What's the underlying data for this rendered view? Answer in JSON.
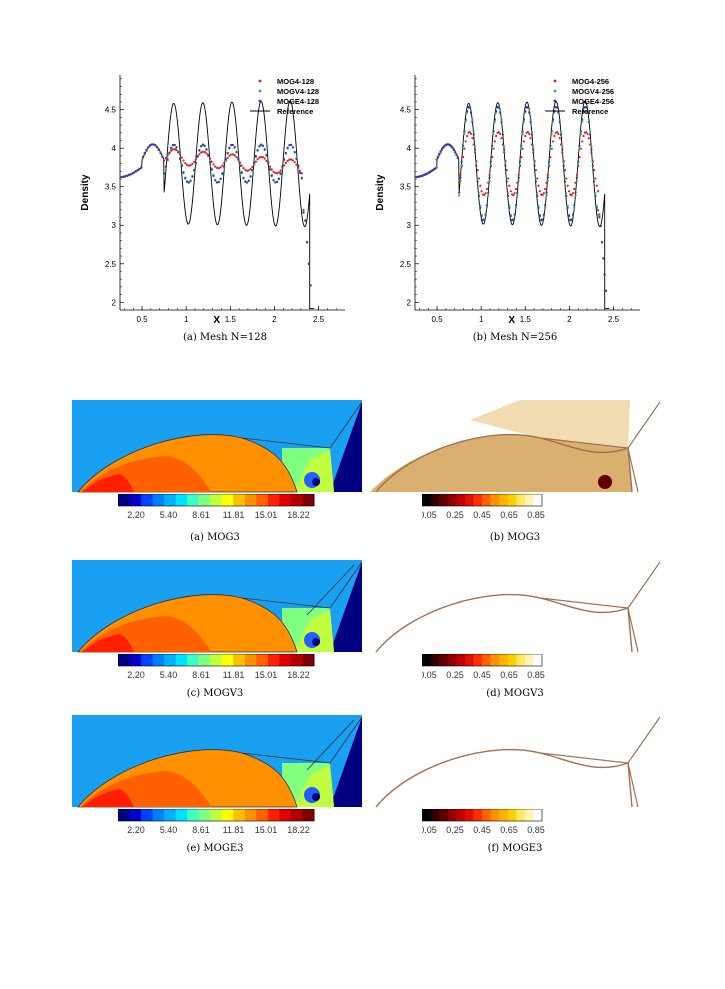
{
  "chart_data": [
    {
      "type": "line",
      "ylabel": "Density",
      "xlabel": "X",
      "xlim": [
        0.25,
        2.8
      ],
      "ylim": [
        1.9,
        4.95
      ],
      "x_ticks": [
        "0.5",
        "1",
        "1.5",
        "2",
        "2.5"
      ],
      "y_ticks": [
        "2",
        "2.5",
        "3",
        "3.5",
        "4",
        "4.5"
      ],
      "legend": [
        "MOG4-128",
        "MOGV4-128",
        "MOGE4-128",
        "Reference"
      ],
      "legend_position": "top-right",
      "series": [
        {
          "name": "MOG4-128",
          "marker": "dot",
          "color": "#e41a1c",
          "style": "smeared",
          "amp": 0.12
        },
        {
          "name": "MOGV4-128",
          "marker": "dot",
          "color": "#22bb33",
          "style": "partial",
          "amp": 0.3
        },
        {
          "name": "MOGE4-128",
          "marker": "dot",
          "color": "#3333cc",
          "style": "partial",
          "amp": 0.3
        },
        {
          "name": "Reference",
          "marker": "line",
          "color": "#000000"
        }
      ],
      "caption": "(a) Mesh N=128"
    },
    {
      "type": "line",
      "ylabel": "Density",
      "xlabel": "X",
      "xlim": [
        0.25,
        2.8
      ],
      "ylim": [
        1.9,
        4.95
      ],
      "x_ticks": [
        "0.5",
        "1",
        "1.5",
        "2",
        "2.5"
      ],
      "y_ticks": [
        "2",
        "2.5",
        "3",
        "3.5",
        "4",
        "4.5"
      ],
      "legend": [
        "MOG4-256",
        "MOGV4-256",
        "MOGE4-256",
        "Reference"
      ],
      "legend_position": "top-right",
      "series": [
        {
          "name": "MOG4-256",
          "marker": "dot",
          "color": "#e41a1c",
          "style": "partial",
          "amp": 0.5
        },
        {
          "name": "MOGV4-256",
          "marker": "dot",
          "color": "#22bb33",
          "style": "resolved",
          "amp": 0.9
        },
        {
          "name": "MOGE4-256",
          "marker": "dot",
          "color": "#3333cc",
          "style": "resolved",
          "amp": 0.9
        },
        {
          "name": "Reference",
          "marker": "line",
          "color": "#000000"
        }
      ],
      "caption": "(b) Mesh N=256"
    }
  ],
  "contours": {
    "density_ticks": [
      "2.20",
      "5.40",
      "8.61",
      "11.81",
      "15.01",
      "18.22"
    ],
    "indicator_ticks": [
      "0.05",
      "0.25",
      "0.45",
      "0.65",
      "0.85"
    ],
    "density_colors": [
      "#000080",
      "#0000c8",
      "#0040ff",
      "#0080ff",
      "#00b0ff",
      "#00e0ff",
      "#40ffc0",
      "#80ff80",
      "#c0ff40",
      "#ffff00",
      "#ffc000",
      "#ff9000",
      "#ff6000",
      "#ff2000",
      "#e00000",
      "#b00000",
      "#800000"
    ],
    "indicator_colors": [
      "#000000",
      "#300000",
      "#600000",
      "#900000",
      "#c00000",
      "#e01000",
      "#ff3000",
      "#ff6000",
      "#ff9000",
      "#ffb000",
      "#ffd000",
      "#ffe860",
      "#fff4b0",
      "#ffffff"
    ],
    "captions": [
      "(a) MOG3",
      "(b) MOG3",
      "(c) MOGV3",
      "(d) MOGV3",
      "(e) MOGE3",
      "(f) MOGE3"
    ]
  }
}
